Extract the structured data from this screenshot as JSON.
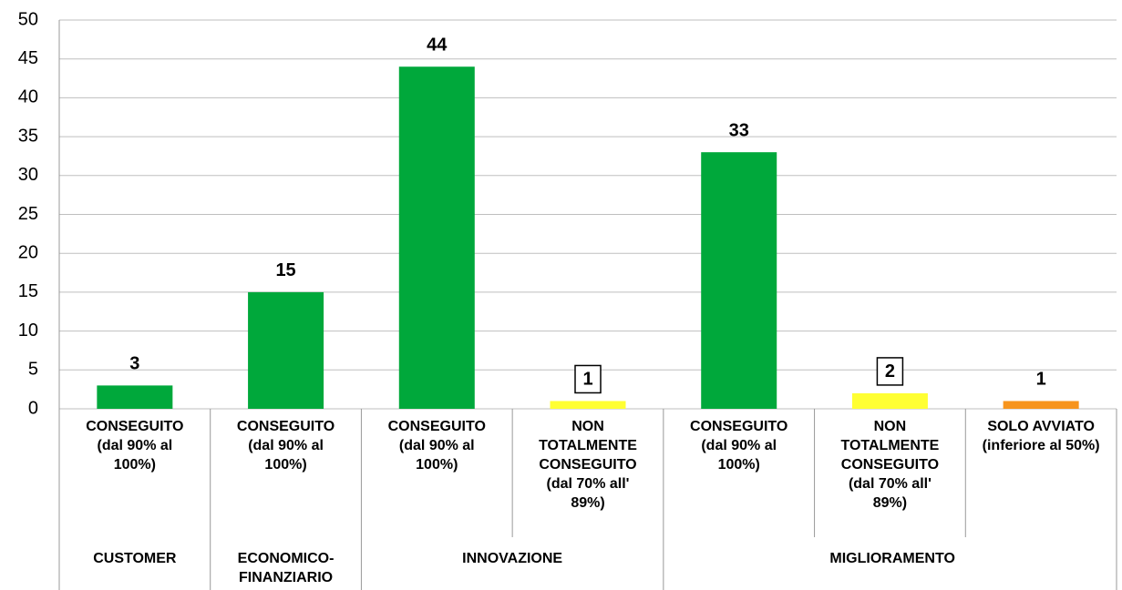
{
  "chart_data": {
    "type": "bar",
    "ylim": [
      0,
      50
    ],
    "yticks": [
      0,
      5,
      10,
      15,
      20,
      25,
      30,
      35,
      40,
      45,
      50
    ],
    "grid": true,
    "groups": [
      {
        "name": "CUSTOMER",
        "categories": [
          "CONSEGUITO (dal 90% al 100%)"
        ],
        "values": [
          3
        ],
        "colors": [
          "#00a83b"
        ],
        "label_box": [
          false
        ]
      },
      {
        "name": "ECONOMICO-FINANZIARIO",
        "categories": [
          "CONSEGUITO (dal 90% al 100%)"
        ],
        "values": [
          15
        ],
        "colors": [
          "#00a83b"
        ],
        "label_box": [
          false
        ]
      },
      {
        "name": "INNOVAZIONE",
        "categories": [
          "CONSEGUITO (dal 90% al 100%)",
          "NON TOTALMENTE CONSEGUITO (dal 70% all' 89%)"
        ],
        "values": [
          44,
          1
        ],
        "colors": [
          "#00a83b",
          "#ffff33"
        ],
        "label_box": [
          false,
          true
        ]
      },
      {
        "name": "MIGLIORAMENTO",
        "categories": [
          "CONSEGUITO (dal 90% al 100%)",
          "NON TOTALMENTE CONSEGUITO (dal 70% all' 89%)",
          "SOLO AVVIATO (inferiore al 50%)"
        ],
        "values": [
          33,
          2,
          1
        ],
        "colors": [
          "#00a83b",
          "#ffff33",
          "#f7941d"
        ],
        "label_box": [
          false,
          true,
          false
        ]
      }
    ]
  }
}
